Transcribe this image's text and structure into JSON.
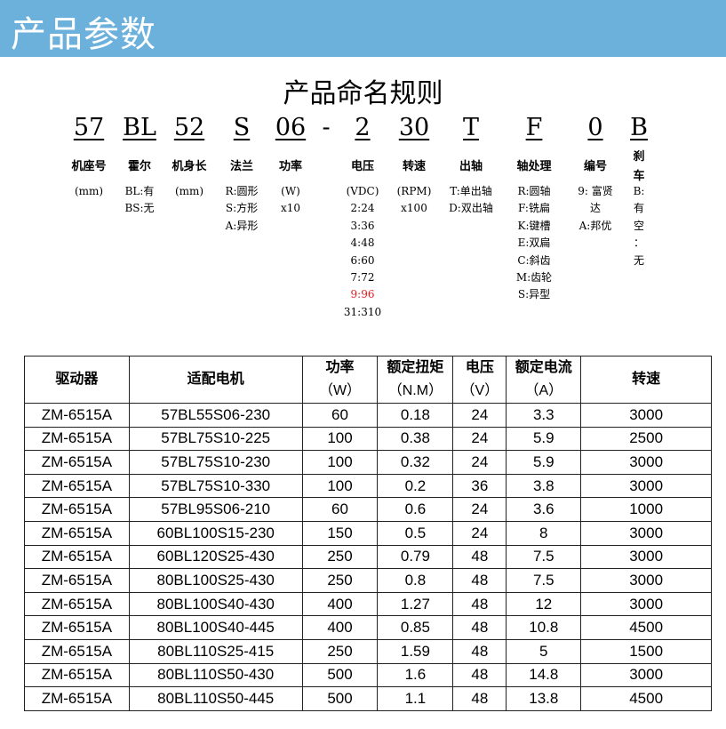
{
  "banner": {
    "title": "产品参数",
    "color": "#6cb0dc"
  },
  "naming": {
    "title": "产品命名规则",
    "columns": [
      {
        "code": "57",
        "label": "机座号",
        "details": [
          "(mm)"
        ]
      },
      {
        "code": "BL",
        "label": "霍尔",
        "details": [
          "BL:有",
          "BS:无"
        ]
      },
      {
        "code": "52",
        "label": "机身长",
        "details": [
          "(mm)"
        ]
      },
      {
        "code": "S",
        "label": "法兰",
        "details": [
          "R:圆形",
          "S:方形",
          "A:异形"
        ]
      },
      {
        "code": "06",
        "label": "功率",
        "details": [
          "(W)",
          "x10"
        ]
      },
      {
        "code": "-",
        "label": "",
        "details": []
      },
      {
        "code": "2",
        "label": "电压",
        "details": [
          "(VDC)",
          "2:24",
          "3:36",
          "4:48",
          "6:60",
          "7:72",
          "9:96",
          "31:310"
        ]
      },
      {
        "code": "30",
        "label": "转速",
        "details": [
          "(RPM)",
          "x100"
        ]
      },
      {
        "code": "T",
        "label": "出轴",
        "details": [
          "T:单出轴",
          "D:双出轴"
        ]
      },
      {
        "code": "F",
        "label": "轴处理",
        "details": [
          "R:圆轴",
          "F:铣扁",
          "K:键槽",
          "E:双扁",
          "C:斜齿",
          "M:齿轮",
          "S:异型"
        ]
      },
      {
        "code": "0",
        "label": "编号",
        "details": [
          "9: 富贤",
          "达",
          "A:邦优"
        ]
      },
      {
        "code": "B",
        "label": "刹车",
        "details": [
          "B:",
          "有",
          "空",
          "：",
          "无"
        ]
      }
    ],
    "highlight": {
      "text": "9:96",
      "color": "#e8191e"
    }
  },
  "table": {
    "headers": [
      [
        "驱动器",
        ""
      ],
      [
        "适配电机",
        ""
      ],
      [
        "功率",
        "（W）"
      ],
      [
        "额定扭矩",
        "（N.M）"
      ],
      [
        "电压",
        "（V）"
      ],
      [
        "额定电流",
        "（A）"
      ],
      [
        "转速",
        ""
      ]
    ],
    "rows": [
      [
        "ZM-6515A",
        "57BL55S06-230",
        "60",
        "0.18",
        "24",
        "3.3",
        "3000"
      ],
      [
        "ZM-6515A",
        "57BL75S10-225",
        "100",
        "0.38",
        "24",
        "5.9",
        "2500"
      ],
      [
        "ZM-6515A",
        "57BL75S10-230",
        "100",
        "0.32",
        "24",
        "5.9",
        "3000"
      ],
      [
        "ZM-6515A",
        "57BL75S10-330",
        "100",
        "0.2",
        "36",
        "3.8",
        "3000"
      ],
      [
        "ZM-6515A",
        "57BL95S06-210",
        "60",
        "0.6",
        "24",
        "3.6",
        "1000"
      ],
      [
        "ZM-6515A",
        "60BL100S15-230",
        "150",
        "0.5",
        "24",
        "8",
        "3000"
      ],
      [
        "ZM-6515A",
        "60BL120S25-430",
        "250",
        "0.79",
        "48",
        "7.5",
        "3000"
      ],
      [
        "ZM-6515A",
        "80BL100S25-430",
        "250",
        "0.8",
        "48",
        "7.5",
        "3000"
      ],
      [
        "ZM-6515A",
        "80BL100S40-430",
        "400",
        "1.27",
        "48",
        "12",
        "3000"
      ],
      [
        "ZM-6515A",
        "80BL100S40-445",
        "400",
        "0.85",
        "48",
        "10.8",
        "4500"
      ],
      [
        "ZM-6515A",
        "80BL110S25-415",
        "250",
        "1.59",
        "48",
        "5",
        "1500"
      ],
      [
        "ZM-6515A",
        "80BL110S50-430",
        "500",
        "1.6",
        "48",
        "14.8",
        "3000"
      ],
      [
        "ZM-6515A",
        "80BL110S50-445",
        "500",
        "1.1",
        "48",
        "13.8",
        "4500"
      ]
    ]
  }
}
